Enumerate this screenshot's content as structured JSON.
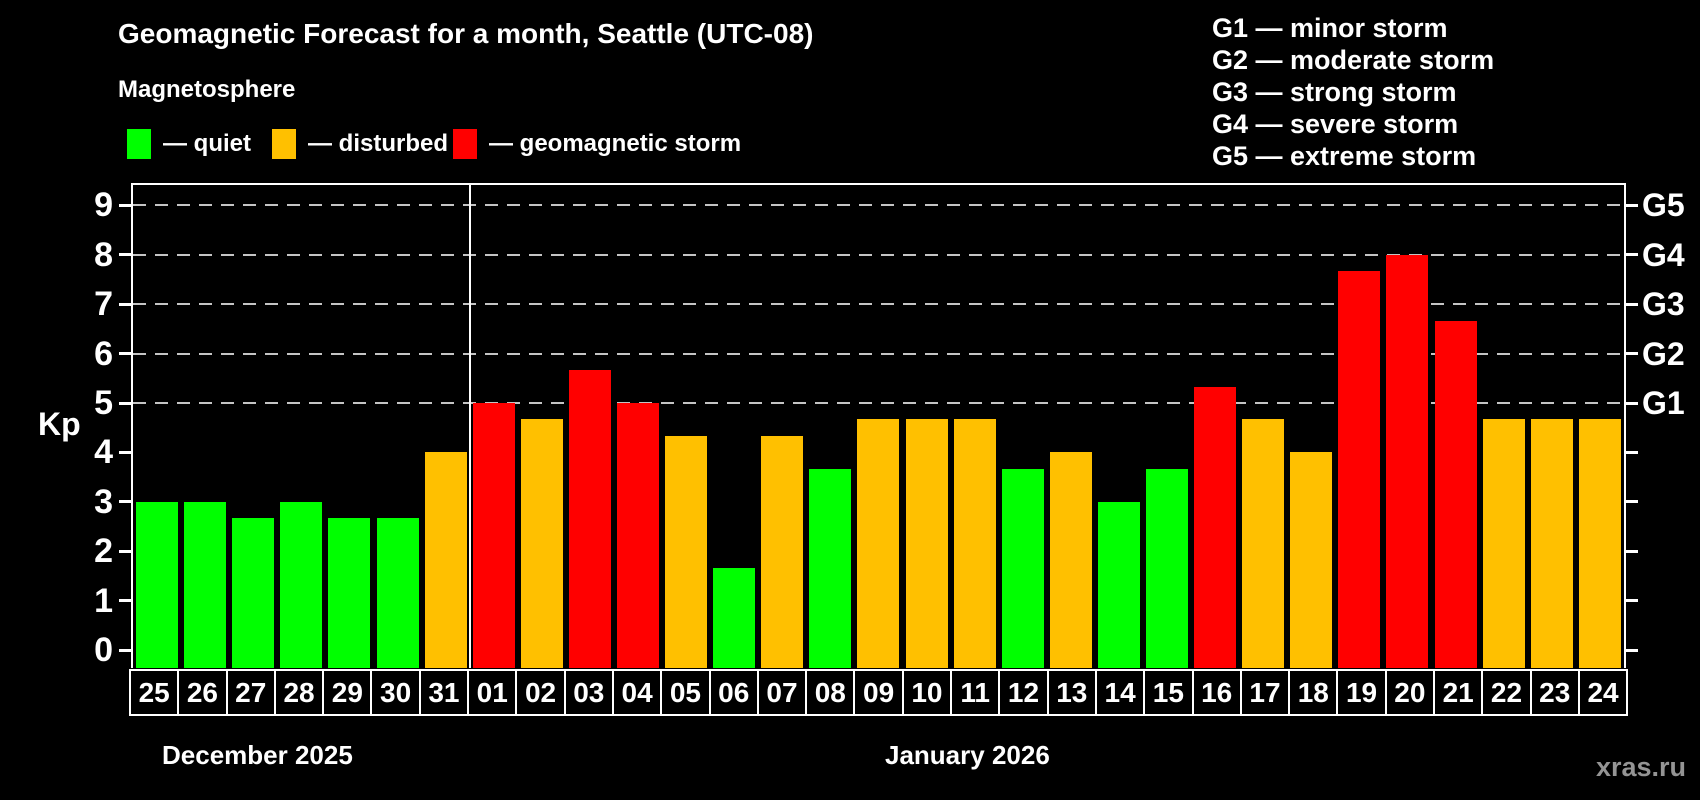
{
  "title": "Geomagnetic Forecast for a month, Seattle (UTC-08)",
  "subtitle": "Magnetosphere",
  "legend": [
    {
      "status": "quiet",
      "color": "#00ff00",
      "label": "— quiet"
    },
    {
      "status": "disturbed",
      "color": "#ffc000",
      "label": "— disturbed"
    },
    {
      "status": "storm",
      "color": "#ff0000",
      "label": "— geomagnetic storm"
    }
  ],
  "g_legend": [
    "G1 — minor storm",
    "G2 — moderate storm",
    "G3 — strong storm",
    "G4 — severe storm",
    "G5 — extreme storm"
  ],
  "colors": {
    "quiet": "#00ff00",
    "disturbed": "#ffc000",
    "storm": "#ff0000",
    "background": "#000000",
    "text": "#ffffff",
    "gridline": "#c4c4c4",
    "watermark": "#949494"
  },
  "watermark": "xras.ru",
  "chart_data": {
    "type": "bar",
    "ylabel": "Kp",
    "ylim": [
      0,
      9.4
    ],
    "grid": "horizontal dashed lines at Kp 5,6,7,8,9 (G1-G5 levels)",
    "legend_position": "top",
    "y_ticks": [
      0,
      1,
      2,
      3,
      4,
      5,
      6,
      7,
      8,
      9
    ],
    "gridlines_kp": [
      5,
      6,
      7,
      8,
      9
    ],
    "right_axis_labels": [
      {
        "kp": 5,
        "label": "G1"
      },
      {
        "kp": 6,
        "label": "G2"
      },
      {
        "kp": 7,
        "label": "G3"
      },
      {
        "kp": 8,
        "label": "G4"
      },
      {
        "kp": 9,
        "label": "G5"
      }
    ],
    "months": [
      {
        "label": "December 2025",
        "count": 7
      },
      {
        "label": "January 2026",
        "count": 24
      }
    ],
    "categories": [
      "25",
      "26",
      "27",
      "28",
      "29",
      "30",
      "31",
      "01",
      "02",
      "03",
      "04",
      "05",
      "06",
      "07",
      "08",
      "09",
      "10",
      "11",
      "12",
      "13",
      "14",
      "15",
      "16",
      "17",
      "18",
      "19",
      "20",
      "21",
      "22",
      "23",
      "24"
    ],
    "values": [
      3.0,
      3.0,
      2.67,
      3.0,
      2.67,
      2.67,
      4.0,
      5.0,
      4.67,
      5.67,
      5.0,
      4.33,
      1.67,
      4.33,
      3.67,
      4.67,
      4.67,
      4.67,
      3.67,
      4.0,
      3.0,
      3.67,
      5.33,
      4.67,
      4.0,
      7.67,
      8.0,
      6.67,
      4.67,
      4.67,
      4.67
    ],
    "statuses": [
      "quiet",
      "quiet",
      "quiet",
      "quiet",
      "quiet",
      "quiet",
      "disturbed",
      "storm",
      "disturbed",
      "storm",
      "storm",
      "disturbed",
      "quiet",
      "disturbed",
      "quiet",
      "disturbed",
      "disturbed",
      "disturbed",
      "quiet",
      "disturbed",
      "quiet",
      "quiet",
      "storm",
      "disturbed",
      "disturbed",
      "storm",
      "storm",
      "storm",
      "disturbed",
      "disturbed",
      "disturbed"
    ]
  }
}
